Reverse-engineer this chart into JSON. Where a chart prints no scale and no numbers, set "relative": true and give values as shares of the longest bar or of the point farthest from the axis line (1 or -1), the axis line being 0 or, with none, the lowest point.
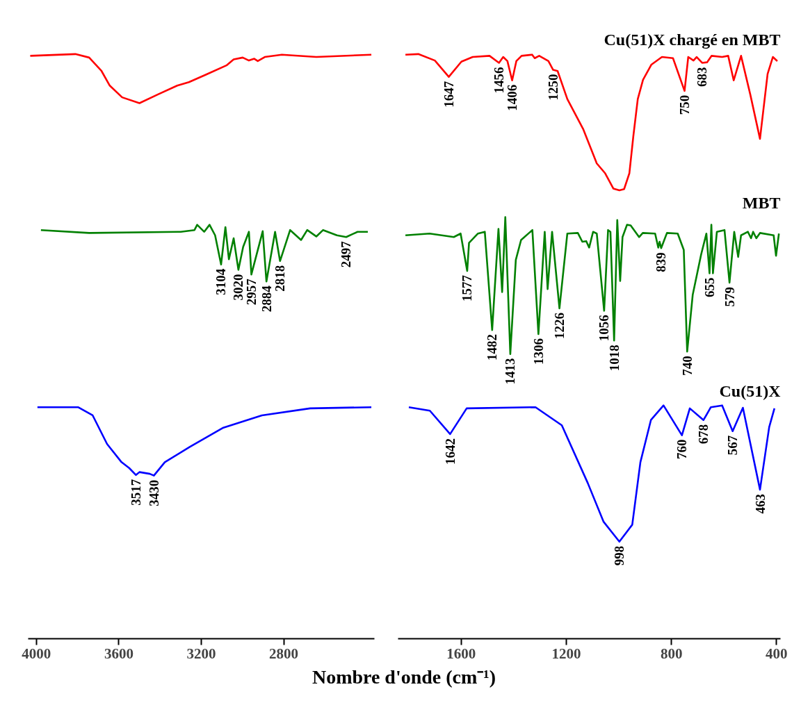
{
  "chart_data": [
    {
      "type": "line",
      "relative": true,
      "tick_labels": "x",
      "grid": false,
      "xlim": [
        4040,
        2360
      ],
      "xticks": [
        4000,
        3600,
        3200,
        2800
      ],
      "xlabel": "Nombre d'onde (cm⁻¹)",
      "series": [
        {
          "color": "#ff0000",
          "x": [
            4030,
            3811,
            3744,
            3684,
            3644,
            3584,
            3500,
            3410,
            3317,
            3260,
            3176,
            3076,
            3043,
            2999,
            2969,
            2943,
            2926,
            2892,
            2809,
            2642,
            2375
          ],
          "values": [
            0.997,
            1.0,
            0.994,
            0.971,
            0.946,
            0.926,
            0.916,
            0.931,
            0.946,
            0.952,
            0.965,
            0.981,
            0.991,
            0.994,
            0.989,
            0.992,
            0.988,
            0.995,
            0.999,
            0.995,
            0.999
          ]
        },
        {
          "color": "#008000",
          "x": [
            3978,
            3744,
            3300,
            3233,
            3220,
            3186,
            3160,
            3133,
            3104,
            3083,
            3066,
            3043,
            3020,
            2997,
            2969,
            2957,
            2902,
            2884,
            2842,
            2818,
            2769,
            2716,
            2686,
            2642,
            2609,
            2542,
            2497,
            2442,
            2392
          ],
          "values": [
            0.699,
            0.694,
            0.696,
            0.699,
            0.708,
            0.696,
            0.708,
            0.69,
            0.64,
            0.704,
            0.649,
            0.685,
            0.631,
            0.67,
            0.696,
            0.623,
            0.697,
            0.611,
            0.696,
            0.646,
            0.699,
            0.682,
            0.699,
            0.688,
            0.699,
            0.69,
            0.687,
            0.696,
            0.696
          ]
        },
        {
          "color": "#0000ff",
          "x": [
            3995,
            3798,
            3727,
            3657,
            3587,
            3550,
            3517,
            3500,
            3450,
            3430,
            3377,
            3256,
            3093,
            2906,
            2672,
            2375
          ],
          "values": [
            0.396,
            0.396,
            0.382,
            0.333,
            0.302,
            0.292,
            0.28,
            0.285,
            0.282,
            0.279,
            0.302,
            0.328,
            0.361,
            0.382,
            0.394,
            0.396
          ]
        }
      ],
      "annotations": [
        {
          "text": "3104",
          "x": 3104,
          "y": 0.64
        },
        {
          "text": "3020",
          "x": 3020,
          "y": 0.631
        },
        {
          "text": "2957",
          "x": 2957,
          "y": 0.623
        },
        {
          "text": "2884",
          "x": 2884,
          "y": 0.611
        },
        {
          "text": "2818",
          "x": 2818,
          "y": 0.646
        },
        {
          "text": "2497",
          "x": 2497,
          "y": 0.687
        },
        {
          "text": "3517",
          "x": 3517,
          "y": 0.28
        },
        {
          "text": "3430",
          "x": 3430,
          "y": 0.279
        }
      ]
    },
    {
      "type": "line",
      "relative": true,
      "tick_labels": "x",
      "grid": false,
      "xlim": [
        1840,
        385
      ],
      "xticks": [
        1600,
        1200,
        800,
        400
      ],
      "series": [
        {
          "name": "Cu(51)X chargé en MBT",
          "color": "#ff0000",
          "x": [
            1812,
            1763,
            1700,
            1647,
            1599,
            1556,
            1492,
            1456,
            1440,
            1424,
            1406,
            1390,
            1370,
            1330,
            1320,
            1303,
            1268,
            1250,
            1233,
            1196,
            1136,
            1084,
            1052,
            1021,
            998,
            980,
            960,
            945,
            928,
            908,
            876,
            836,
            794,
            750,
            736,
            716,
            704,
            683,
            664,
            647,
            607,
            584,
            563,
            535,
            500,
            463,
            434,
            414,
            397
          ],
          "values": [
            0.999,
            1.0,
            0.989,
            0.961,
            0.987,
            0.995,
            0.997,
            0.985,
            0.995,
            0.988,
            0.955,
            0.988,
            0.997,
            0.999,
            0.993,
            0.997,
            0.988,
            0.973,
            0.971,
            0.923,
            0.872,
            0.813,
            0.796,
            0.77,
            0.767,
            0.769,
            0.796,
            0.859,
            0.923,
            0.956,
            0.982,
            0.995,
            0.993,
            0.937,
            0.995,
            0.989,
            0.995,
            0.985,
            0.986,
            0.997,
            0.995,
            0.997,
            0.955,
            0.997,
            0.931,
            0.855,
            0.966,
            0.995,
            0.988
          ]
        },
        {
          "name": "MBT",
          "color": "#008000",
          "x": [
            1812,
            1720,
            1628,
            1602,
            1577,
            1570,
            1536,
            1510,
            1482,
            1458,
            1444,
            1432,
            1413,
            1392,
            1372,
            1329,
            1306,
            1282,
            1271,
            1254,
            1226,
            1196,
            1156,
            1139,
            1124,
            1113,
            1098,
            1084,
            1056,
            1041,
            1032,
            1018,
            1006,
            995,
            986,
            969,
            955,
            923,
            909,
            862,
            850,
            845,
            839,
            817,
            776,
            753,
            740,
            719,
            687,
            667,
            655,
            648,
            642,
            627,
            598,
            579,
            561,
            546,
            535,
            509,
            497,
            489,
            477,
            463,
            411,
            402,
            391
          ],
          "values": [
            0.69,
            0.693,
            0.687,
            0.693,
            0.629,
            0.677,
            0.693,
            0.696,
            0.528,
            0.701,
            0.593,
            0.721,
            0.487,
            0.648,
            0.682,
            0.699,
            0.521,
            0.696,
            0.598,
            0.696,
            0.565,
            0.693,
            0.694,
            0.679,
            0.68,
            0.669,
            0.696,
            0.693,
            0.561,
            0.699,
            0.696,
            0.51,
            0.716,
            0.612,
            0.687,
            0.708,
            0.707,
            0.687,
            0.694,
            0.693,
            0.669,
            0.679,
            0.668,
            0.694,
            0.693,
            0.665,
            0.491,
            0.588,
            0.657,
            0.693,
            0.625,
            0.708,
            0.625,
            0.696,
            0.699,
            0.609,
            0.696,
            0.653,
            0.69,
            0.696,
            0.685,
            0.696,
            0.685,
            0.694,
            0.69,
            0.655,
            0.693
          ]
        },
        {
          "name": "Cu(51)X",
          "color": "#0000ff",
          "x": [
            1799,
            1719,
            1642,
            1579,
            1317,
            1217,
            1118,
            1058,
            998,
            949,
            918,
            878,
            830,
            760,
            730,
            678,
            650,
            607,
            567,
            528,
            463,
            428,
            408
          ],
          "values": [
            0.396,
            0.39,
            0.35,
            0.394,
            0.396,
            0.365,
            0.266,
            0.2,
            0.166,
            0.195,
            0.302,
            0.374,
            0.399,
            0.348,
            0.394,
            0.374,
            0.396,
            0.399,
            0.355,
            0.395,
            0.255,
            0.362,
            0.394
          ]
        }
      ],
      "annotations": [
        {
          "text": "1647",
          "x": 1647,
          "y": 0.961
        },
        {
          "text": "1456",
          "x": 1456,
          "y": 0.985
        },
        {
          "text": "1406",
          "x": 1406,
          "y": 0.955
        },
        {
          "text": "1250",
          "x": 1250,
          "y": 0.973
        },
        {
          "text": "750",
          "x": 750,
          "y": 0.937
        },
        {
          "text": "683",
          "x": 683,
          "y": 0.985
        },
        {
          "text": "1577",
          "x": 1577,
          "y": 0.629
        },
        {
          "text": "1482",
          "x": 1482,
          "y": 0.528
        },
        {
          "text": "1413",
          "x": 1413,
          "y": 0.487
        },
        {
          "text": "1306",
          "x": 1306,
          "y": 0.521
        },
        {
          "text": "1226",
          "x": 1226,
          "y": 0.565
        },
        {
          "text": "1056",
          "x": 1056,
          "y": 0.561
        },
        {
          "text": "1018",
          "x": 1018,
          "y": 0.51
        },
        {
          "text": "839",
          "x": 839,
          "y": 0.668
        },
        {
          "text": "740",
          "x": 740,
          "y": 0.491
        },
        {
          "text": "655",
          "x": 655,
          "y": 0.625
        },
        {
          "text": "579",
          "x": 579,
          "y": 0.609
        },
        {
          "text": "1642",
          "x": 1642,
          "y": 0.35
        },
        {
          "text": "998",
          "x": 998,
          "y": 0.166
        },
        {
          "text": "760",
          "x": 760,
          "y": 0.348
        },
        {
          "text": "678",
          "x": 678,
          "y": 0.374
        },
        {
          "text": "567",
          "x": 567,
          "y": 0.355
        },
        {
          "text": "463",
          "x": 463,
          "y": 0.255
        }
      ]
    }
  ]
}
